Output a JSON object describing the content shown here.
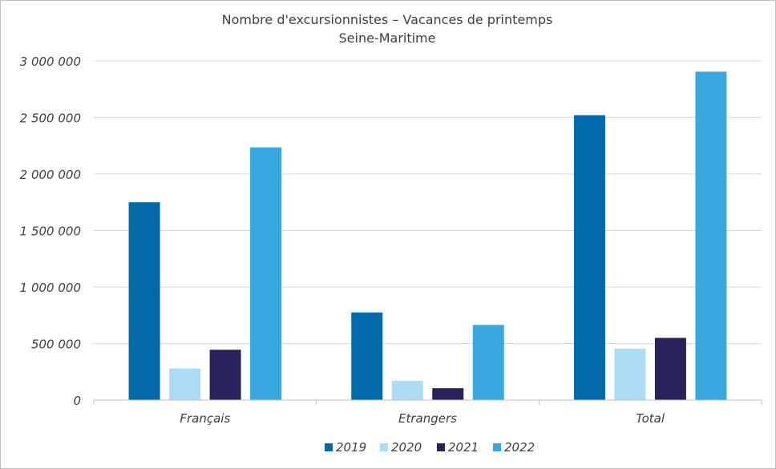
{
  "chart_data": {
    "type": "bar",
    "title": "Nombre d'excursionnistes – Vacances de printemps",
    "subtitle": "Seine-Maritime",
    "categories": [
      "Français",
      "Etrangers",
      "Total"
    ],
    "series": [
      {
        "name": "2019",
        "color": "#006ba8",
        "values": [
          1750000,
          775000,
          2520000
        ]
      },
      {
        "name": "2020",
        "color": "#addcf7",
        "values": [
          280000,
          170000,
          455000
        ]
      },
      {
        "name": "2021",
        "color": "#27235a",
        "values": [
          445000,
          105000,
          550000
        ]
      },
      {
        "name": "2022",
        "color": "#38a9e0",
        "values": [
          2235000,
          665000,
          2905000
        ]
      }
    ],
    "ylim": [
      0,
      3000000
    ],
    "yticks": [
      0,
      500000,
      1000000,
      1500000,
      2000000,
      2500000,
      3000000
    ],
    "ytick_labels": [
      "0",
      "500 000",
      "1 000 000",
      "1 500 000",
      "2 000 000",
      "2 500 000",
      "3 000 000"
    ],
    "grid": true,
    "legend_position": "bottom"
  }
}
